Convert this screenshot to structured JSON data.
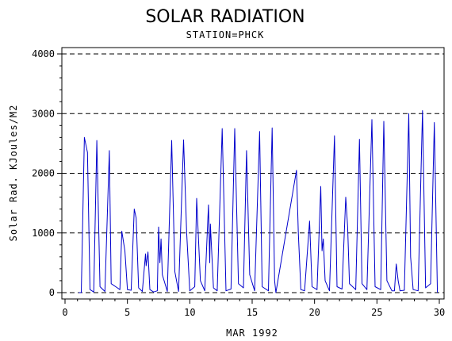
{
  "chart_data": {
    "type": "line",
    "title": "SOLAR RADIATION",
    "subtitle": "STATION=PHCK",
    "xlabel": "MAR 1992",
    "ylabel": "Solar Rad. KJoules/M2",
    "xlim": [
      0,
      30
    ],
    "ylim": [
      0,
      4000
    ],
    "x_ticks": [
      0,
      5,
      10,
      15,
      20,
      25,
      30
    ],
    "y_ticks": [
      0,
      1000,
      2000,
      3000,
      4000
    ],
    "grid": "dashed horizontal lines at y ticks",
    "line_color": "#0000cc",
    "series": [
      {
        "values": [
          [
            1.1,
            0
          ],
          [
            1.3,
            0
          ],
          [
            1.55,
            2600
          ],
          [
            1.8,
            2350
          ],
          [
            2.0,
            50
          ],
          [
            2.3,
            10
          ],
          [
            2.55,
            2550
          ],
          [
            2.8,
            100
          ],
          [
            3.2,
            20
          ],
          [
            3.55,
            2380
          ],
          [
            3.7,
            150
          ],
          [
            4.2,
            80
          ],
          [
            4.4,
            50
          ],
          [
            4.55,
            1030
          ],
          [
            4.8,
            700
          ],
          [
            5.0,
            50
          ],
          [
            5.3,
            40
          ],
          [
            5.55,
            1400
          ],
          [
            5.7,
            1250
          ],
          [
            5.9,
            80
          ],
          [
            6.2,
            20
          ],
          [
            6.45,
            650
          ],
          [
            6.5,
            450
          ],
          [
            6.65,
            680
          ],
          [
            6.8,
            50
          ],
          [
            7.1,
            10
          ],
          [
            7.4,
            30
          ],
          [
            7.5,
            1100
          ],
          [
            7.6,
            500
          ],
          [
            7.7,
            900
          ],
          [
            7.8,
            300
          ],
          [
            8.2,
            20
          ],
          [
            8.55,
            2550
          ],
          [
            8.8,
            350
          ],
          [
            9.1,
            20
          ],
          [
            9.5,
            2560
          ],
          [
            9.75,
            1000
          ],
          [
            10.0,
            30
          ],
          [
            10.4,
            100
          ],
          [
            10.55,
            1580
          ],
          [
            10.7,
            900
          ],
          [
            10.85,
            200
          ],
          [
            11.2,
            30
          ],
          [
            11.5,
            1470
          ],
          [
            11.6,
            500
          ],
          [
            11.65,
            1150
          ],
          [
            11.9,
            80
          ],
          [
            12.2,
            30
          ],
          [
            12.6,
            2750
          ],
          [
            12.9,
            30
          ],
          [
            13.3,
            60
          ],
          [
            13.6,
            2750
          ],
          [
            13.9,
            150
          ],
          [
            14.3,
            80
          ],
          [
            14.55,
            2380
          ],
          [
            14.8,
            300
          ],
          [
            15.2,
            30
          ],
          [
            15.6,
            2700
          ],
          [
            15.8,
            100
          ],
          [
            16.3,
            30
          ],
          [
            16.6,
            2760
          ],
          [
            16.8,
            200
          ],
          [
            16.9,
            0
          ],
          [
            18.55,
            2050
          ],
          [
            18.7,
            1000
          ],
          [
            18.9,
            50
          ],
          [
            19.2,
            30
          ],
          [
            19.6,
            1200
          ],
          [
            19.8,
            100
          ],
          [
            20.2,
            50
          ],
          [
            20.5,
            1780
          ],
          [
            20.6,
            700
          ],
          [
            20.7,
            900
          ],
          [
            20.85,
            200
          ],
          [
            21.2,
            30
          ],
          [
            21.6,
            2630
          ],
          [
            21.8,
            100
          ],
          [
            22.2,
            60
          ],
          [
            22.5,
            1600
          ],
          [
            22.65,
            1100
          ],
          [
            22.8,
            150
          ],
          [
            23.3,
            50
          ],
          [
            23.6,
            2570
          ],
          [
            23.8,
            150
          ],
          [
            24.2,
            50
          ],
          [
            24.6,
            2900
          ],
          [
            24.85,
            100
          ],
          [
            25.3,
            50
          ],
          [
            25.55,
            2870
          ],
          [
            25.8,
            200
          ],
          [
            26.2,
            30
          ],
          [
            26.4,
            30
          ],
          [
            26.55,
            480
          ],
          [
            26.7,
            200
          ],
          [
            26.85,
            30
          ],
          [
            27.2,
            40
          ],
          [
            27.55,
            3000
          ],
          [
            27.7,
            600
          ],
          [
            27.9,
            50
          ],
          [
            28.3,
            30
          ],
          [
            28.65,
            3050
          ],
          [
            28.9,
            80
          ],
          [
            29.3,
            150
          ],
          [
            29.6,
            2850
          ],
          [
            29.85,
            0
          ]
        ]
      }
    ]
  }
}
